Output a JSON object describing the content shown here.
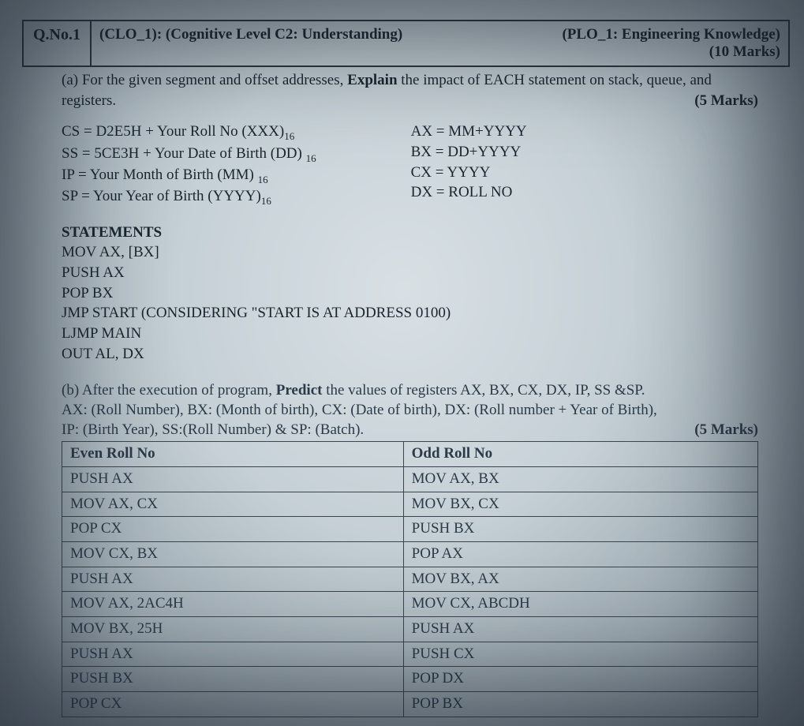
{
  "header": {
    "qno": "Q.No.1",
    "clo": "(CLO_1): (Cognitive Level C2: Understanding)",
    "plo": "(PLO_1: Engineering Knowledge)",
    "total_marks": "(10 Marks)"
  },
  "part_a": {
    "prompt_prefix": "(a) For the given segment and offset addresses, ",
    "prompt_bold": "Explain",
    "prompt_suffix": " the impact of EACH statement on stack, queue, and registers.",
    "marks": "(5 Marks)",
    "left_defs": [
      "CS = D2E5H + Your Roll No (XXX)",
      "SS = 5CE3H + Your Date of Birth (DD)",
      "IP = Your Month of Birth (MM)",
      "SP = Your Year of Birth (YYYY)"
    ],
    "left_sub": "16",
    "right_defs": [
      "AX = MM+YYYY",
      "BX = DD+YYYY",
      "CX = YYYY",
      "DX = ROLL NO"
    ],
    "stmt_heading": "STATEMENTS",
    "statements": [
      "MOV AX, [BX]",
      "PUSH AX",
      "POP BX",
      "JMP START (CONSIDERING \"START IS AT ADDRESS 0100)",
      "LJMP MAIN",
      "OUT AL, DX"
    ]
  },
  "part_b": {
    "prompt_line1_prefix": "(b) After the execution of program, ",
    "prompt_line1_bold": "Predict",
    "prompt_line1_suffix": " the values of registers AX, BX, CX, DX, IP, SS &SP.",
    "prompt_line2": "AX: (Roll Number), BX: (Month of birth), CX: (Date of birth), DX: (Roll number + Year of Birth),",
    "prompt_line3": "IP: (Birth Year), SS:(Roll Number) & SP: (Batch).",
    "marks": "(5 Marks)",
    "table": {
      "headers": [
        "Even Roll No",
        "Odd Roll No"
      ],
      "rows": [
        [
          "PUSH AX",
          "MOV AX, BX"
        ],
        [
          "MOV AX, CX",
          "MOV BX, CX"
        ],
        [
          "POP CX",
          "PUSH BX"
        ],
        [
          "MOV CX, BX",
          "POP AX"
        ],
        [
          "PUSH AX",
          "MOV BX, AX"
        ],
        [
          "MOV AX, 2AC4H",
          "MOV CX, ABCDH"
        ],
        [
          "MOV BX, 25H",
          "PUSH AX"
        ],
        [
          "PUSH AX",
          "PUSH CX"
        ],
        [
          "PUSH BX",
          "POP DX"
        ],
        [
          "POP CX",
          "POP BX"
        ]
      ]
    }
  }
}
